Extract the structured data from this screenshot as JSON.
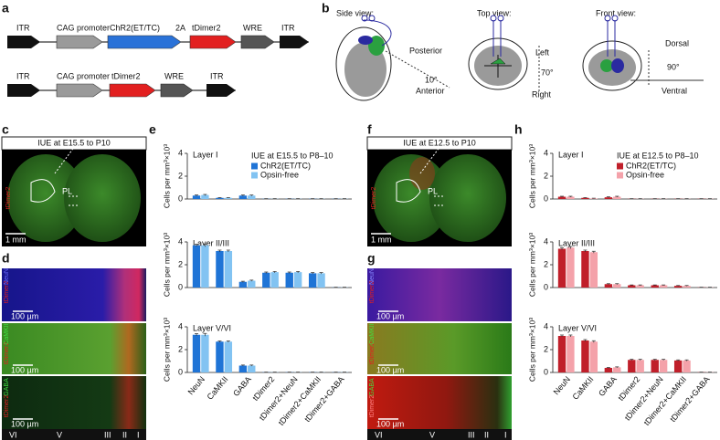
{
  "panels": {
    "a": {
      "label": "a",
      "constructs": [
        {
          "parts": [
            "ITR",
            "CAG promoter",
            "ChR2(ET/TC)",
            "2A",
            "tDimer2",
            "WRE",
            "ITR"
          ]
        },
        {
          "parts": [
            "ITR",
            "CAG promoter",
            "tDimer2",
            "WRE",
            "ITR"
          ]
        }
      ]
    },
    "b": {
      "label": "b",
      "views": [
        {
          "title": "Side view:",
          "labels": [
            "Posterior",
            "10°",
            "Anterior"
          ]
        },
        {
          "title": "Top view:",
          "labels": [
            "Left",
            "70°",
            "Right"
          ]
        },
        {
          "title": "Front view:",
          "labels": [
            "Dorsal",
            "90°",
            "Ventral"
          ]
        }
      ]
    },
    "c": {
      "label": "c",
      "header": "IUE at E15.5 to P10",
      "stain": "tDimer2",
      "region": "PL",
      "scale": "1 mm"
    },
    "d": {
      "label": "d",
      "strips": [
        {
          "markers": [
            "tDimer2",
            "NeuN"
          ],
          "scale": "100 µm"
        },
        {
          "markers": [
            "tDimer2",
            "CaMKII"
          ],
          "scale": "100 µm"
        },
        {
          "markers": [
            "tDimer2",
            "GABA"
          ],
          "scale": "100 µm"
        }
      ],
      "layers": [
        "VI",
        "V",
        "III",
        "II",
        "I"
      ]
    },
    "f": {
      "label": "f",
      "header": "IUE at E12.5 to P10",
      "stain": "tDimer2",
      "region": "PL",
      "scale": "1 mm"
    },
    "g": {
      "label": "g",
      "strips": [
        {
          "markers": [
            "tDimer2",
            "NeuN"
          ],
          "scale": "100 µm"
        },
        {
          "markers": [
            "tDimer2",
            "CaMKII"
          ],
          "scale": "100 µm"
        },
        {
          "markers": [
            "tDimer2",
            "GABA"
          ],
          "scale": "100 µm"
        }
      ],
      "layers": [
        "VI",
        "V",
        "III",
        "II",
        "I"
      ]
    }
  },
  "chart_data": [
    {
      "type": "bar",
      "label": "e",
      "legend_title": "IUE at E15.5 to P8–10",
      "ylabel": "Cells per mm³×10³",
      "categories": [
        "NeuN",
        "CaMKII",
        "GABA",
        "tDimer2",
        "tDimer2+NeuN",
        "tDimer2+CaMKII",
        "tDimer2+GABA"
      ],
      "ylim": [
        0,
        4
      ],
      "yticks": [
        0,
        2,
        4
      ],
      "legend": [
        {
          "name": "ChR2(ET/TC)",
          "color": "#1f74d6"
        },
        {
          "name": "Opsin-free",
          "color": "#82c3f2"
        }
      ],
      "facets": [
        {
          "title": "Layer I",
          "series": [
            {
              "values": [
                0.3,
                0.1,
                0.3,
                0.02,
                0.02,
                0.02,
                0.02
              ],
              "errors": [
                0.05,
                0.02,
                0.05,
                0.01,
                0.01,
                0.01,
                0.01
              ]
            },
            {
              "values": [
                0.35,
                0.1,
                0.3,
                0.02,
                0.02,
                0.02,
                0.02
              ],
              "errors": [
                0.05,
                0.02,
                0.05,
                0.01,
                0.01,
                0.01,
                0.01
              ]
            }
          ]
        },
        {
          "title": "Layer II/III",
          "series": [
            {
              "values": [
                3.7,
                3.2,
                0.5,
                1.3,
                1.3,
                1.25,
                0.02
              ],
              "errors": [
                0.1,
                0.08,
                0.05,
                0.06,
                0.06,
                0.06,
                0.01
              ]
            },
            {
              "values": [
                3.7,
                3.2,
                0.6,
                1.35,
                1.35,
                1.25,
                0.02
              ],
              "errors": [
                0.12,
                0.08,
                0.05,
                0.06,
                0.06,
                0.06,
                0.01
              ]
            }
          ]
        },
        {
          "title": "Layer V/VI",
          "series": [
            {
              "values": [
                3.3,
                2.7,
                0.6,
                0.02,
                0.02,
                0.02,
                0.02
              ],
              "errors": [
                0.1,
                0.06,
                0.05,
                0.01,
                0.01,
                0.01,
                0.01
              ]
            },
            {
              "values": [
                3.3,
                2.7,
                0.6,
                0.02,
                0.02,
                0.02,
                0.02
              ],
              "errors": [
                0.12,
                0.06,
                0.05,
                0.01,
                0.01,
                0.01,
                0.01
              ]
            }
          ]
        }
      ]
    },
    {
      "type": "bar",
      "label": "h",
      "legend_title": "IUE at E12.5 to P8–10",
      "ylabel": "Cells per mm³×10³",
      "categories": [
        "NeuN",
        "CaMKII",
        "GABA",
        "tDimer2",
        "tDimer2+NeuN",
        "tDimer2+CaMKII",
        "tDimer2+GABA"
      ],
      "ylim": [
        0,
        4
      ],
      "yticks": [
        0,
        2,
        4
      ],
      "legend": [
        {
          "name": "ChR2(ET/TC)",
          "color": "#c01f2a"
        },
        {
          "name": "Opsin-free",
          "color": "#f4a2aa"
        }
      ],
      "facets": [
        {
          "title": "Layer I",
          "series": [
            {
              "values": [
                0.2,
                0.1,
                0.15,
                0.02,
                0.02,
                0.02,
                0.02
              ],
              "errors": [
                0.04,
                0.02,
                0.04,
                0.01,
                0.01,
                0.01,
                0.01
              ]
            },
            {
              "values": [
                0.2,
                0.05,
                0.2,
                0.02,
                0.02,
                0.02,
                0.02
              ],
              "errors": [
                0.04,
                0.02,
                0.04,
                0.01,
                0.01,
                0.01,
                0.01
              ]
            }
          ]
        },
        {
          "title": "Layer II/III",
          "series": [
            {
              "values": [
                3.4,
                3.2,
                0.3,
                0.2,
                0.2,
                0.15,
                0.02
              ],
              "errors": [
                0.1,
                0.08,
                0.04,
                0.03,
                0.03,
                0.03,
                0.01
              ]
            },
            {
              "values": [
                3.5,
                3.1,
                0.3,
                0.2,
                0.2,
                0.15,
                0.02
              ],
              "errors": [
                0.1,
                0.08,
                0.04,
                0.03,
                0.03,
                0.03,
                0.01
              ]
            }
          ]
        },
        {
          "title": "Layer V/VI",
          "series": [
            {
              "values": [
                3.2,
                2.8,
                0.4,
                1.1,
                1.1,
                1.05,
                0.02
              ],
              "errors": [
                0.08,
                0.08,
                0.04,
                0.05,
                0.05,
                0.05,
                0.01
              ]
            },
            {
              "values": [
                3.2,
                2.7,
                0.45,
                1.1,
                1.1,
                1.05,
                0.02
              ],
              "errors": [
                0.08,
                0.08,
                0.04,
                0.05,
                0.05,
                0.05,
                0.01
              ]
            }
          ]
        }
      ]
    }
  ]
}
